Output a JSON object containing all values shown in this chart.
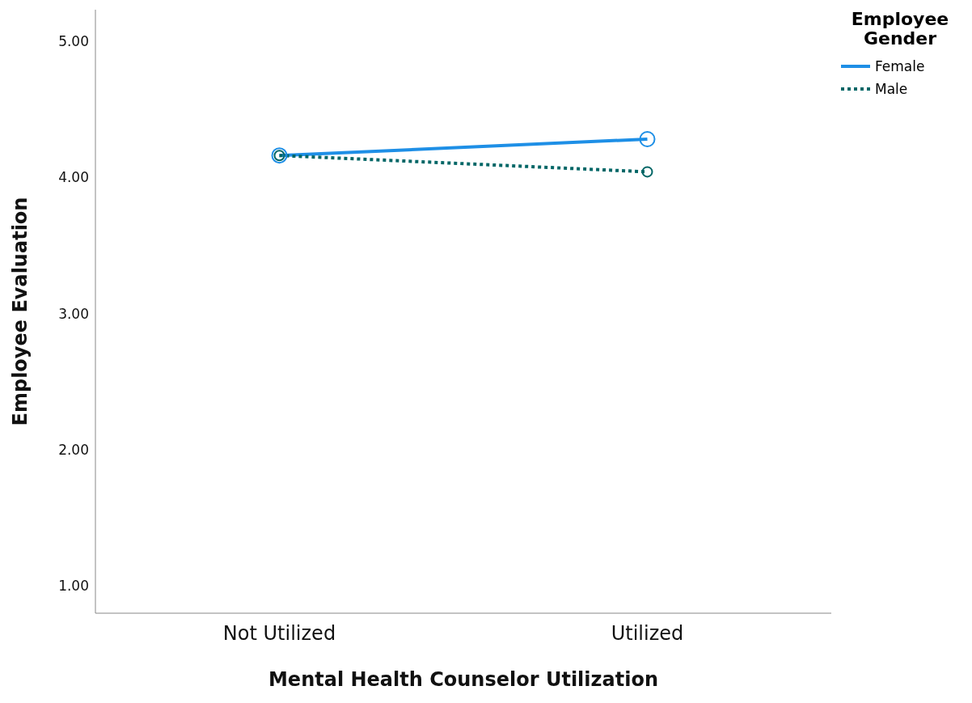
{
  "chart_data": {
    "type": "line",
    "xlabel": "Mental Health Counselor Utilization",
    "ylabel": "Employee Evaluation",
    "legend_title": "Employee Gender",
    "categories": [
      "Not Utilized",
      "Utilized"
    ],
    "series": [
      {
        "name": "Female",
        "color": "#1e8fe6",
        "values": [
          4.16,
          4.28
        ],
        "line_style": "solid"
      },
      {
        "name": "Male",
        "color": "#006666",
        "values": [
          4.16,
          4.04
        ],
        "line_style": "dotted"
      }
    ],
    "ylim": [
      0.8,
      5.23
    ],
    "yticks": [
      {
        "value": 1,
        "label": "1.00"
      },
      {
        "value": 2,
        "label": "2.00"
      },
      {
        "value": 3,
        "label": "3.00"
      },
      {
        "value": 4,
        "label": "4.00"
      },
      {
        "value": 5,
        "label": "5.00"
      }
    ],
    "grid": false,
    "legend": "top right",
    "marker": "circle"
  }
}
